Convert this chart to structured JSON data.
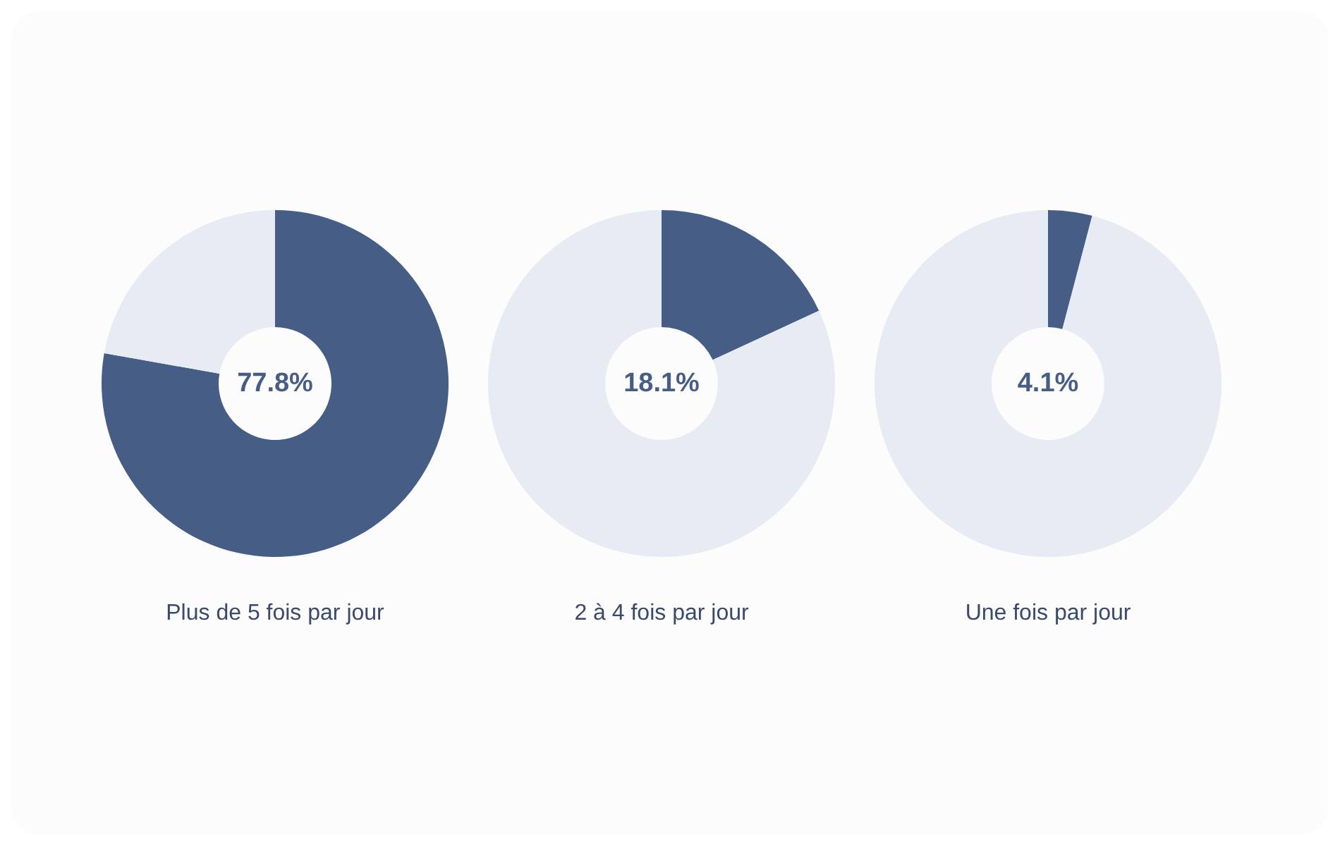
{
  "chart_data": [
    {
      "type": "donut",
      "title": "Plus de 5 fois par jour",
      "categories": [
        null,
        null
      ],
      "values": [
        77.8,
        22.2
      ],
      "colors": [
        "#465e85",
        "#e7ebf4"
      ],
      "annotations": [
        "77.8%"
      ]
    },
    {
      "type": "donut",
      "title": "2 à 4 fois par jour",
      "categories": [
        null,
        null
      ],
      "values": [
        18.1,
        81.9
      ],
      "colors": [
        "#465e85",
        "#e7ebf4"
      ],
      "annotations": [
        "18.1%"
      ]
    },
    {
      "type": "donut",
      "title": "Une fois par jour",
      "categories": [
        null,
        null
      ],
      "values": [
        4.1,
        95.9
      ],
      "colors": [
        "#465e85",
        "#e7ebf4"
      ],
      "annotations": [
        "4.1%"
      ]
    }
  ]
}
